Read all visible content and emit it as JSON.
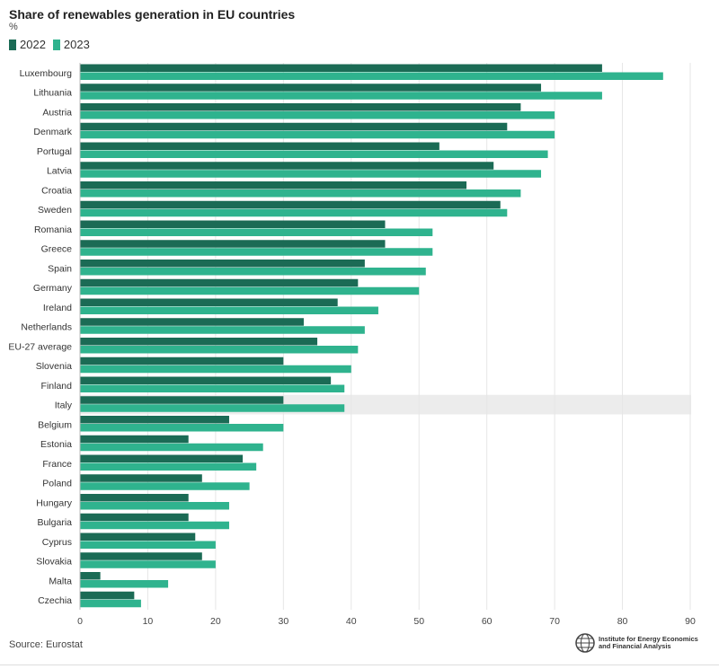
{
  "chart_data": {
    "type": "bar",
    "orientation": "horizontal",
    "title": "Share of renewables generation in EU countries",
    "unit": "%",
    "categories": [
      "Luxembourg",
      "Lithuania",
      "Austria",
      "Denmark",
      "Portugal",
      "Latvia",
      "Croatia",
      "Sweden",
      "Romania",
      "Greece",
      "Spain",
      "Germany",
      "Ireland",
      "Netherlands",
      "EU-27 average",
      "Slovenia",
      "Finland",
      "Italy",
      "Belgium",
      "Estonia",
      "France",
      "Poland",
      "Hungary",
      "Bulgaria",
      "Cyprus",
      "Slovakia",
      "Malta",
      "Czechia"
    ],
    "series": [
      {
        "name": "2022",
        "color": "#1b6b55",
        "values": [
          77,
          68,
          65,
          63,
          53,
          61,
          57,
          62,
          45,
          45,
          42,
          41,
          38,
          33,
          35,
          30,
          37,
          30,
          22,
          16,
          24,
          18,
          16,
          16,
          17,
          18,
          3,
          8
        ]
      },
      {
        "name": "2023",
        "color": "#2fb38e",
        "values": [
          86,
          77,
          70,
          70,
          69,
          68,
          65,
          63,
          52,
          52,
          51,
          50,
          44,
          42,
          41,
          40,
          39,
          39,
          30,
          27,
          26,
          25,
          22,
          22,
          20,
          20,
          13,
          9
        ]
      }
    ],
    "highlighted_category": "Italy",
    "xlim": [
      0,
      90
    ],
    "xticks": [
      0,
      10,
      20,
      30,
      40,
      50,
      60,
      70,
      80,
      90
    ],
    "grid": true,
    "legend_position": "top-left"
  },
  "source": "Source: Eurostat",
  "logo_text_line1": "Institute for Energy Economics",
  "logo_text_line2": "and Financial Analysis"
}
